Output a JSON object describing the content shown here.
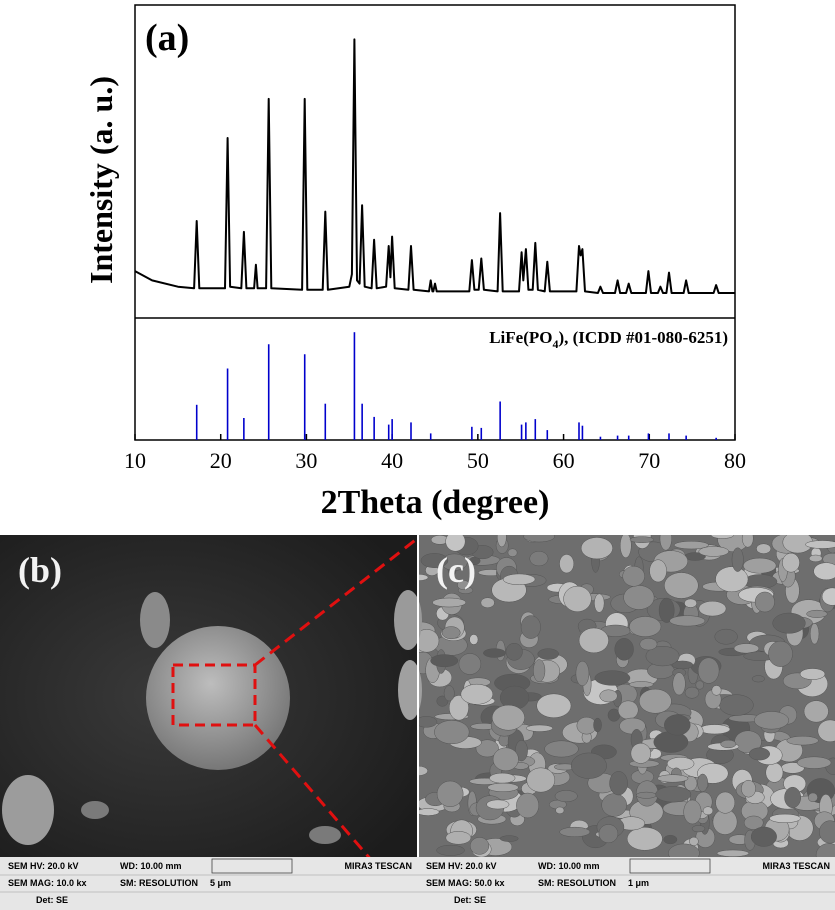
{
  "chart_data": {
    "type": "line",
    "panel_label": "(a)",
    "ylabel": "Intensity (a. u.)",
    "xlabel": "2Theta (degree)",
    "color": "#000000",
    "x": [
      10,
      12,
      15,
      16.9,
      17.2,
      17.5,
      20.5,
      20.8,
      21.1,
      22.4,
      22.7,
      23.0,
      23.9,
      24.1,
      24.3,
      25.3,
      25.6,
      25.9,
      29.5,
      29.8,
      30.1,
      31.9,
      32.2,
      32.5,
      35.0,
      35.3,
      35.6,
      35.9,
      36.2,
      36.5,
      36.8,
      37.6,
      37.9,
      38.2,
      39.3,
      39.6,
      39.8,
      40.0,
      40.3,
      41.9,
      42.2,
      42.5,
      44.3,
      44.5,
      44.7,
      44.8,
      45.0,
      45.2,
      49.0,
      49.3,
      49.6,
      50.1,
      50.4,
      50.7,
      52.3,
      52.6,
      52.9,
      54.8,
      55.1,
      55.3,
      55.6,
      55.9,
      56.4,
      56.7,
      57.0,
      57.8,
      58.1,
      58.4,
      61.5,
      61.8,
      62.0,
      62.2,
      62.5,
      64.0,
      64.3,
      64.6,
      66.0,
      66.3,
      66.6,
      67.3,
      67.6,
      67.9,
      69.6,
      69.9,
      70.2,
      71.0,
      71.3,
      71.6,
      72.0,
      72.3,
      72.6,
      74.0,
      74.3,
      74.6,
      77.5,
      77.8,
      78.1,
      80
    ],
    "values": [
      15,
      12,
      10,
      9.5,
      31,
      9.5,
      9.5,
      57.5,
      10,
      9.5,
      27.5,
      9.5,
      9.5,
      17,
      9.5,
      9.5,
      70,
      9.5,
      9,
      70,
      9,
      9,
      34,
      9,
      10,
      14,
      89,
      12,
      11,
      36,
      10,
      9.5,
      25,
      9.5,
      10,
      23,
      13,
      26,
      9.5,
      9,
      23,
      9,
      8.5,
      12,
      8.5,
      8.5,
      11,
      8.5,
      8.5,
      18.5,
      9,
      9,
      19,
      9,
      8.5,
      33.5,
      8.5,
      8.5,
      21,
      12,
      22,
      9,
      9,
      24,
      9,
      8.5,
      18,
      8.5,
      8.5,
      23,
      20,
      22,
      8.5,
      8,
      10,
      8,
      8,
      12,
      8,
      8,
      11,
      8,
      8,
      15,
      8,
      8,
      10,
      8,
      8,
      14.5,
      8,
      8,
      12,
      8,
      8,
      10.5,
      8,
      8
    ],
    "xlim": [
      10,
      80
    ],
    "xticks": [
      10,
      20,
      30,
      40,
      50,
      60,
      70,
      80
    ],
    "ylim": [
      0,
      100
    ],
    "reference": {
      "label": [
        "LiFe(PO",
        "4",
        "), (ICDD #01-080-6251)"
      ],
      "color": "#0000cc",
      "ylim": [
        0,
        100
      ],
      "x": [
        17.2,
        20.8,
        22.7,
        25.6,
        29.8,
        32.2,
        35.6,
        36.5,
        37.9,
        39.6,
        40.0,
        42.2,
        44.5,
        49.3,
        50.4,
        52.6,
        55.1,
        55.6,
        56.7,
        58.1,
        61.8,
        62.2,
        64.3,
        66.3,
        67.6,
        69.9,
        72.3,
        74.3,
        77.8
      ],
      "values": [
        32,
        65,
        20,
        87,
        78,
        33,
        98,
        33,
        21,
        14,
        19,
        16,
        6,
        12,
        11,
        35,
        14,
        16,
        19,
        9,
        16,
        13,
        3,
        4,
        4,
        6,
        6,
        4,
        2
      ]
    }
  },
  "sem_panels": [
    {
      "label": "(b)",
      "info": [
        [
          "SEM HV: 20.0 kV",
          "WD: 10.00 mm",
          "MIRA3 TESCAN"
        ],
        [
          "SEM MAG: 10.0 kx",
          "SM: RESOLUTION",
          "5 μm"
        ],
        [
          "Det: SE"
        ]
      ]
    },
    {
      "label": "(c)",
      "info": [
        [
          "SEM HV: 20.0 kV",
          "WD: 10.00 mm",
          "MIRA3 TESCAN"
        ],
        [
          "SEM MAG: 50.0 kx",
          "SM: RESOLUTION",
          "1 μm"
        ],
        [
          "Det: SE"
        ]
      ]
    }
  ]
}
